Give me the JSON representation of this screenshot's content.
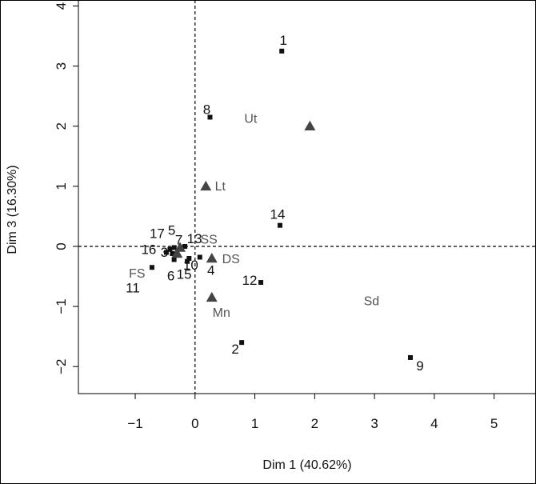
{
  "chart_data": {
    "type": "scatter",
    "xlabel": "Dim 1 (40.62%)",
    "ylabel": "Dim 3 (16.30%)",
    "xlim": [
      -1.95,
      5.7
    ],
    "ylim": [
      -2.45,
      4.1
    ],
    "xticks": [
      -1,
      0,
      1,
      2,
      3,
      4,
      5
    ],
    "yticks": [
      -2,
      -1,
      0,
      1,
      2,
      3,
      4
    ],
    "tick_labels_x": [
      "−1",
      "0",
      "1",
      "2",
      "3",
      "4",
      "5"
    ],
    "tick_labels_y": [
      "−2",
      "−1",
      "0",
      "1",
      "2",
      "3",
      "4"
    ],
    "reference_lines": {
      "x": 0,
      "y": 0,
      "style": "dashed"
    },
    "individuals": [
      {
        "label": "1",
        "x": 1.45,
        "y": 3.25
      },
      {
        "label": "8",
        "x": 0.25,
        "y": 2.15
      },
      {
        "label": "14",
        "x": 1.42,
        "y": 0.35
      },
      {
        "label": "12",
        "x": 1.1,
        "y": -0.6
      },
      {
        "label": "2",
        "x": 0.78,
        "y": -1.6
      },
      {
        "label": "9",
        "x": 3.6,
        "y": -1.85
      },
      {
        "label": "4",
        "x": 0.08,
        "y": -0.18
      },
      {
        "label": "17",
        "x": -0.42,
        "y": -0.05
      },
      {
        "label": "5",
        "x": -0.35,
        "y": -0.02
      },
      {
        "label": "7",
        "x": -0.23,
        "y": -0.02
      },
      {
        "label": "13",
        "x": -0.17,
        "y": 0.0
      },
      {
        "label": "16",
        "x": -0.48,
        "y": -0.1
      },
      {
        "label": "3",
        "x": -0.38,
        "y": -0.12
      },
      {
        "label": "6",
        "x": -0.35,
        "y": -0.22
      },
      {
        "label": "10",
        "x": -0.1,
        "y": -0.2
      },
      {
        "label": "15",
        "x": -0.13,
        "y": -0.25
      },
      {
        "label": "11",
        "x": -0.72,
        "y": -0.35
      }
    ],
    "categories": [
      {
        "label": "Ut",
        "x": 1.92,
        "y": 2.0
      },
      {
        "label": "Lt",
        "x": 0.18,
        "y": 1.0
      },
      {
        "label": "SS",
        "x": -0.25,
        "y": -0.02
      },
      {
        "label": "FS",
        "x": -0.3,
        "y": -0.12
      },
      {
        "label": "DS",
        "x": 0.28,
        "y": -0.2
      },
      {
        "label": "Mn",
        "x": 0.28,
        "y": -0.85
      },
      {
        "label": "Sd",
        "x": 2.95,
        "y": -0.98
      }
    ],
    "colors": {
      "individual": "#111111",
      "category": "#555555",
      "category_marker": "#444444"
    }
  }
}
